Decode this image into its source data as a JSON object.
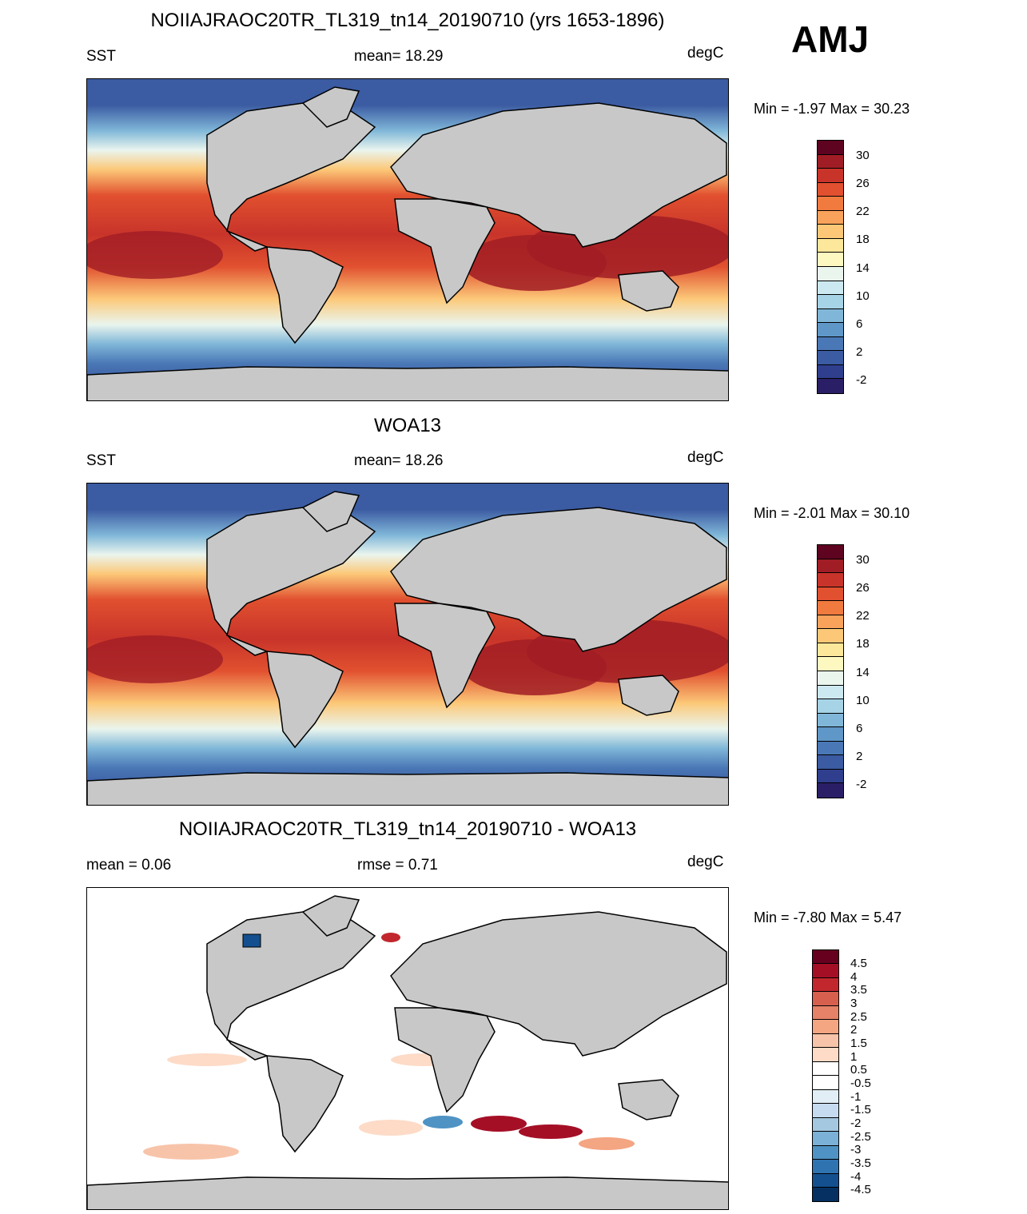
{
  "season": "AMJ",
  "units": "degC",
  "panels": [
    {
      "title": "NOIIAJRAOC20TR_TL319_tn14_20190710 (yrs 1653-1896)",
      "left_label": "SST",
      "center_label": "mean=  18.29",
      "right_label": "degC",
      "minmax": "Min =  -1.97 Max =  30.23",
      "colorbar_labels": [
        "30",
        "26",
        "22",
        "18",
        "14",
        "10",
        "6",
        "2",
        "-2"
      ]
    },
    {
      "title": "WOA13",
      "left_label": "SST",
      "center_label": "mean=  18.26",
      "right_label": "degC",
      "minmax": "Min =  -2.01 Max =  30.10",
      "colorbar_labels": [
        "30",
        "26",
        "22",
        "18",
        "14",
        "10",
        "6",
        "2",
        "-2"
      ]
    },
    {
      "title": "NOIIAJRAOC20TR_TL319_tn14_20190710 - WOA13",
      "left_label": "mean =   0.06",
      "center_label": "rmse =   0.71",
      "right_label": "degC",
      "minmax": "Min =  -7.80 Max =   5.47",
      "colorbar_labels": [
        "4.5",
        "4",
        "3.5",
        "3",
        "2.5",
        "2",
        "1.5",
        "1",
        "0.5",
        "-0.5",
        "-1",
        "-1.5",
        "-2",
        "-2.5",
        "-3",
        "-3.5",
        "-4",
        "-4.5"
      ]
    }
  ],
  "colors": {
    "sst_scale": [
      "#5e0320",
      "#a11d25",
      "#c8342a",
      "#e1502f",
      "#f17a3f",
      "#f9a25b",
      "#fcc878",
      "#fde79a",
      "#fdf7c0",
      "#eaf5ee",
      "#cce8f0",
      "#a6d3e6",
      "#80b7d8",
      "#5f97c8",
      "#4a78b6",
      "#3b5ba2",
      "#2f3f8e",
      "#2a1f66"
    ],
    "diff_scale": [
      "#67001f",
      "#a50f26",
      "#c1272d",
      "#d6604d",
      "#e58267",
      "#f4a582",
      "#f7c4aa",
      "#fddbc7",
      "#ffffff",
      "#ffffff",
      "#e1eef6",
      "#c6dbef",
      "#a5c8e1",
      "#7bb1d6",
      "#4f93c4",
      "#2f74b1",
      "#14508f",
      "#053061"
    ],
    "land": "#c8c8c8"
  }
}
